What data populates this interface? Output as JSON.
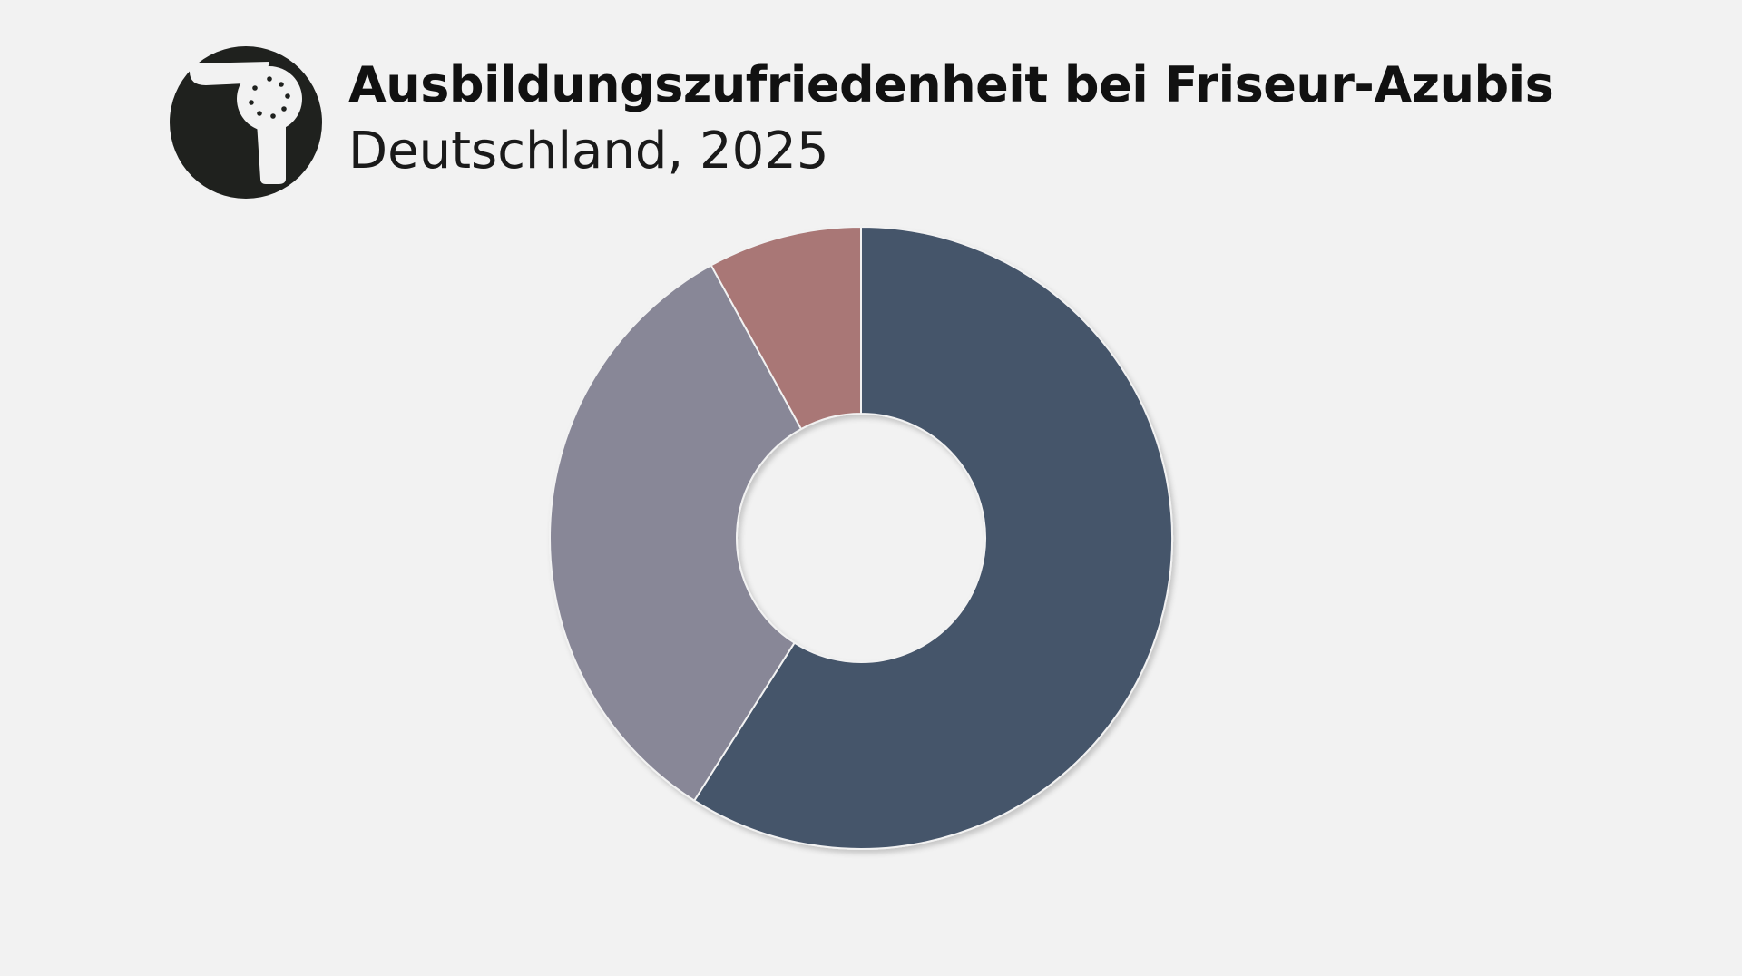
{
  "header": {
    "title": "Ausbildungszufriedenheit bei Friseur-Azubis",
    "subtitle": "Deutschland, 2025",
    "logo_icon": "hair-dryer-icon"
  },
  "colors": {
    "background": "#f2f2f2",
    "logo_circle": "#1f211e",
    "logo_glyph": "#f2f2f2"
  },
  "chart_data": {
    "type": "pie",
    "donut": true,
    "title": "Ausbildungszufriedenheit bei Friseur-Azubis",
    "subtitle": "Deutschland, 2025",
    "legend": false,
    "values": [
      59,
      33,
      8
    ],
    "colors": [
      "#45546b",
      "#888797",
      "#a97776"
    ]
  }
}
